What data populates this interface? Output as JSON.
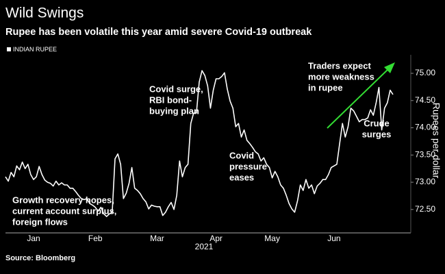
{
  "chart_data": {
    "type": "line",
    "title": "Wild Swings",
    "subtitle": "Rupee has been volatile this year amid severe Covid-19 outbreak",
    "y_label": "Rupees per dollar",
    "source": "Source: Bloomberg",
    "year_label": "2021",
    "ylim": [
      72.07,
      75.34
    ],
    "yticks": [
      {
        "value": 72.5,
        "label": "72.50"
      },
      {
        "value": 73,
        "label": "73.00"
      },
      {
        "value": 73.5,
        "label": "73.50"
      },
      {
        "value": 74,
        "label": "74.00"
      },
      {
        "value": 74.5,
        "label": "74.50"
      },
      {
        "value": 75,
        "label": "75.00"
      }
    ],
    "categories": [
      null,
      null,
      null,
      null,
      null,
      null,
      null,
      null,
      null,
      null,
      "Jan",
      null,
      null,
      null,
      null,
      null,
      null,
      null,
      null,
      null,
      null,
      null,
      null,
      null,
      null,
      null,
      null,
      null,
      null,
      null,
      null,
      null,
      "Feb",
      null,
      null,
      null,
      null,
      null,
      null,
      null,
      null,
      null,
      null,
      null,
      null,
      null,
      null,
      null,
      null,
      null,
      null,
      null,
      null,
      null,
      "Mar",
      null,
      null,
      null,
      null,
      null,
      null,
      null,
      null,
      null,
      null,
      null,
      null,
      null,
      null,
      null,
      null,
      null,
      null,
      null,
      null,
      "Apr",
      null,
      null,
      null,
      null,
      null,
      null,
      null,
      null,
      null,
      null,
      null,
      null,
      null,
      null,
      null,
      null,
      null,
      null,
      null,
      "May",
      null,
      null,
      null,
      null,
      null,
      null,
      null,
      null,
      null,
      null,
      null,
      null,
      null,
      null,
      null,
      null,
      null,
      null,
      null,
      null,
      null,
      "Jun",
      null,
      null,
      null,
      null,
      null,
      null,
      null,
      null,
      null,
      null,
      null,
      null,
      null,
      null,
      null,
      null,
      null,
      null,
      null,
      null,
      null
    ],
    "series": [
      {
        "name": "INDIAN RUPEE",
        "color": "#ffffff",
        "values": [
          73.1,
          73.02,
          73.18,
          73.1,
          73.3,
          73.23,
          73.37,
          73.25,
          73.33,
          73.14,
          73.05,
          73.1,
          73.29,
          73.14,
          73.04,
          73.0,
          72.98,
          72.93,
          73.02,
          72.95,
          72.99,
          72.95,
          72.95,
          72.89,
          72.89,
          72.83,
          72.76,
          72.7,
          72.68,
          72.7,
          72.61,
          72.58,
          72.54,
          72.47,
          72.54,
          72.42,
          72.37,
          72.42,
          72.45,
          73.43,
          73.52,
          73.33,
          72.7,
          72.8,
          72.98,
          73.27,
          72.89,
          72.85,
          72.79,
          72.7,
          72.64,
          72.51,
          72.58,
          72.56,
          72.55,
          72.55,
          72.39,
          72.45,
          72.55,
          72.63,
          72.5,
          72.76,
          73.39,
          73.1,
          73.27,
          73.33,
          74.08,
          74.27,
          74.27,
          74.84,
          75.05,
          74.96,
          74.77,
          74.36,
          74.69,
          74.9,
          74.9,
          74.94,
          75.01,
          74.71,
          74.49,
          74.36,
          74.02,
          74.08,
          73.83,
          73.96,
          73.77,
          73.71,
          73.64,
          73.56,
          73.52,
          73.39,
          73.45,
          73.33,
          73.27,
          73.08,
          73.2,
          73.1,
          72.95,
          72.89,
          72.76,
          72.61,
          72.51,
          72.45,
          72.66,
          72.95,
          72.85,
          73.05,
          72.89,
          72.95,
          72.79,
          72.93,
          72.98,
          73.05,
          73.05,
          73.14,
          73.27,
          73.3,
          73.33,
          73.71,
          74.08,
          73.83,
          74.02,
          74.36,
          74.31,
          74.21,
          74.11,
          74.15,
          74.15,
          74.18,
          74.33,
          74.23,
          74.46,
          74.74,
          73.96,
          74.36,
          74.46,
          74.69,
          74.61
        ]
      }
    ],
    "annotations": [
      {
        "lines": [
          "Growth recovery hopes,",
          "current account surplus,",
          "foreign flows"
        ],
        "color": "#ff2a2a"
      },
      {
        "lines": [
          "Covid surge,",
          "RBI bond-",
          "buying plan"
        ],
        "color": "#ff2a2a"
      },
      {
        "lines": [
          "Covid",
          "pressure",
          "eases"
        ],
        "color": "#ff2a2a"
      },
      {
        "lines": [
          "Crude",
          "surges"
        ],
        "color": "#ff2a2a"
      },
      {
        "lines": [
          "Traders expect",
          "more weakness",
          "in rupee"
        ],
        "color": "#33dd33"
      }
    ]
  }
}
